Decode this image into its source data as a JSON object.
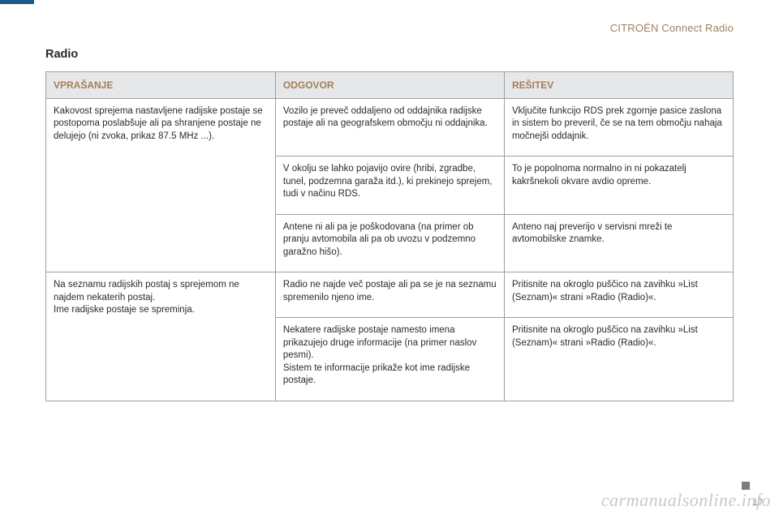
{
  "header": {
    "brand_section": "CITROËN Connect Radio"
  },
  "section": {
    "title": "Radio"
  },
  "table": {
    "columns": [
      "VPRAŠANJE",
      "ODGOVOR",
      "REŠITEV"
    ],
    "group1": {
      "question": "Kakovost sprejema nastavljene radijske postaje se postopoma poslabšuje ali pa shranjene postaje ne delujejo (ni zvoka, prikaz 87.5 MHz ...).",
      "rows": [
        {
          "answer": "Vozilo je preveč oddaljeno od oddajnika radijske postaje ali na geografskem območju ni oddajnika.",
          "solution": "Vključite funkcijo RDS prek zgornje pasice zaslona in sistem bo preveril, če se na tem območju nahaja močnejši oddajnik."
        },
        {
          "answer": "V okolju se lahko pojavijo ovire (hribi, zgradbe, tunel, podzemna garaža itd.), ki prekinejo sprejem, tudi v načinu RDS.",
          "solution": "To je popolnoma normalno in ni pokazatelj kakršnekoli okvare avdio opreme."
        },
        {
          "answer": "Antene ni ali pa je poškodovana (na primer ob pranju avtomobila ali pa ob uvozu v podzemno garažno hišo).",
          "solution": "Anteno naj preverijo v servisni mreži te avtomobilske znamke."
        }
      ]
    },
    "group2": {
      "question": "Na seznamu radijskih postaj s sprejemom ne najdem nekaterih postaj.\nIme radijske postaje se spreminja.",
      "rows": [
        {
          "answer": "Radio ne najde več postaje ali pa se je na seznamu spremenilo njeno ime.",
          "solution": "Pritisnite na okroglo puščico na zavihku »List (Seznam)« strani »Radio (Radio)«."
        },
        {
          "answer": "Nekatere radijske postaje namesto imena prikazujejo druge informacije (na primer naslov pesmi).\nSistem te informacije prikaže kot ime radijske postaje.",
          "solution": "Pritisnite na okroglo puščico na zavihku »List (Seznam)« strani »Radio (Radio)«."
        }
      ]
    }
  },
  "footer": {
    "watermark": "carmanualsonline.info",
    "page": "17"
  },
  "colors": {
    "accent_bar": "#1a5a84",
    "header_text": "#a27f5b",
    "th_bg": "#e6e7e8",
    "border": "#9aa0a6",
    "watermark": "#c9c9c9",
    "square": "#7d7d7d"
  }
}
